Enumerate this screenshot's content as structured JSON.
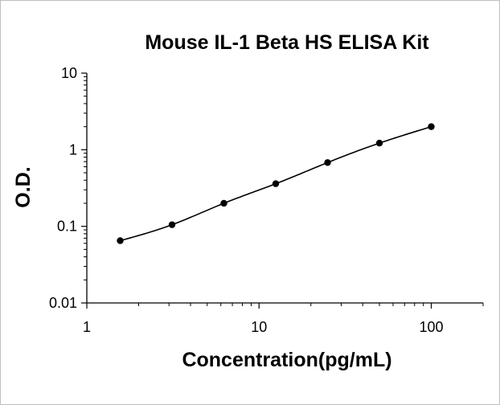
{
  "chart_data": {
    "type": "scatter",
    "title": "Mouse IL-1 Beta HS ELISA Kit",
    "xlabel": "Concentration(pg/mL)",
    "ylabel": "O.D.",
    "x_scale": "log",
    "y_scale": "log",
    "xlim": [
      1,
      200
    ],
    "ylim": [
      0.01,
      10
    ],
    "x_ticks": [
      {
        "value": 1,
        "label": "1"
      },
      {
        "value": 10,
        "label": "10"
      },
      {
        "value": 100,
        "label": "100"
      }
    ],
    "y_ticks": [
      {
        "value": 0.01,
        "label": "0.01"
      },
      {
        "value": 0.1,
        "label": "0.1"
      },
      {
        "value": 1,
        "label": "1"
      },
      {
        "value": 10,
        "label": "10"
      }
    ],
    "grid": false,
    "legend": "none",
    "fitted_curve": true,
    "series": [
      {
        "x": [
          1.5625,
          3.125,
          6.25,
          12.5,
          25,
          50,
          100
        ],
        "y": [
          0.065,
          0.105,
          0.2,
          0.36,
          0.68,
          1.22,
          2.0
        ]
      }
    ],
    "colors": {
      "marker": "#000000",
      "line": "#000000",
      "axis": "#000000"
    }
  }
}
